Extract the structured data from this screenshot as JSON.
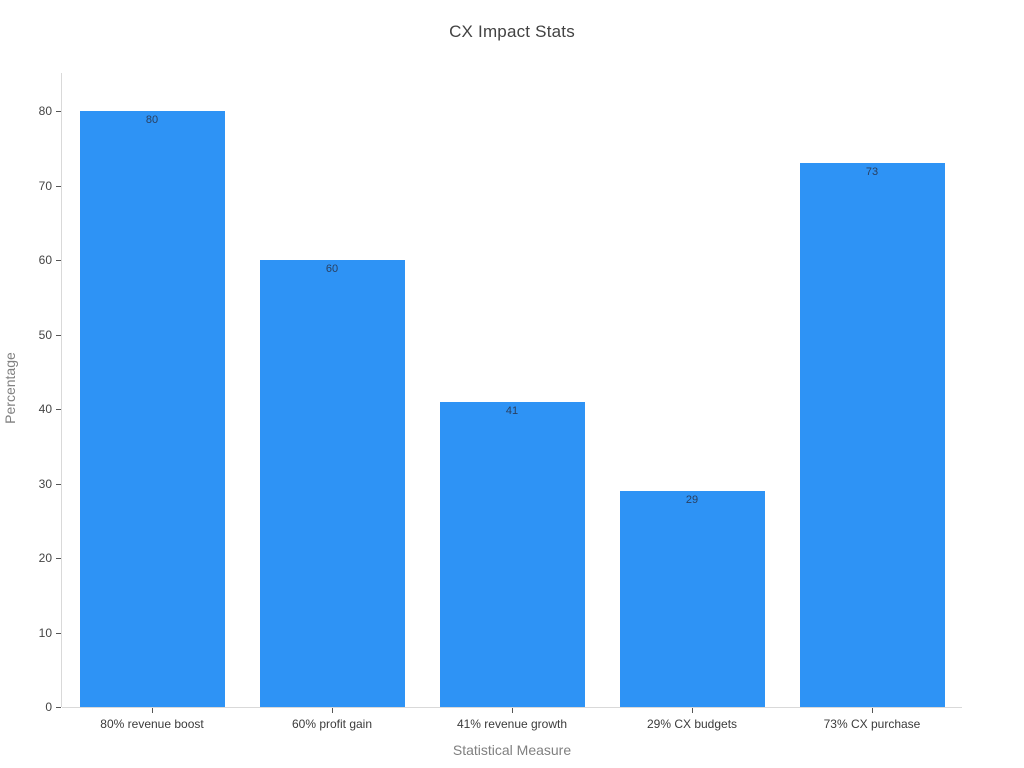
{
  "page": {
    "background": "#ffffff"
  },
  "chart_data": {
    "type": "bar",
    "title": "CX Impact Stats",
    "xlabel": "Statistical Measure",
    "ylabel": "Percentage",
    "categories": [
      "80% revenue boost",
      "60% profit gain",
      "41% revenue growth",
      "29% CX budgets",
      "73% CX purchase"
    ],
    "values": [
      80,
      60,
      41,
      29,
      73
    ],
    "bar_labels": [
      "80",
      "60",
      "41",
      "29",
      "73"
    ],
    "yticks": [
      0,
      10,
      20,
      30,
      40,
      50,
      60,
      70,
      80
    ],
    "ylim": [
      0,
      85
    ],
    "grid": false,
    "legend": "none",
    "colors": {
      "bar": "#2e93f5",
      "bar_label_text": "#2a3f5f",
      "axis_line": "#d9d9d9",
      "tick_mark": "#555555",
      "tick_label_text": "#444444",
      "axis_title_text": "#808080",
      "title_text": "#424242",
      "background": "#ffffff"
    }
  }
}
